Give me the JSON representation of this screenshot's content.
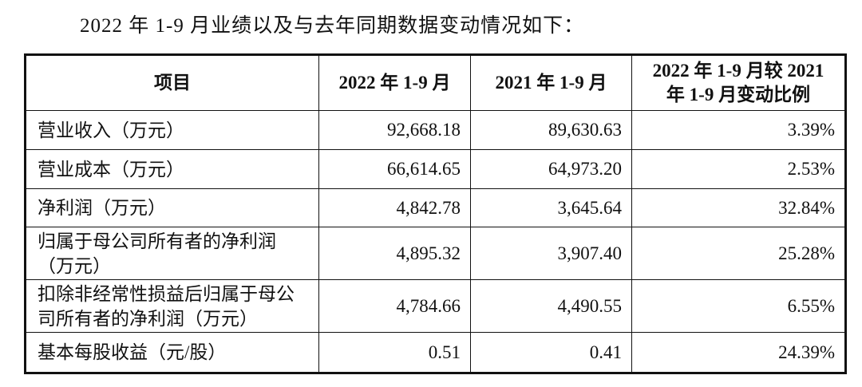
{
  "title": "2022 年 1-9 月业绩以及与去年同期数据变动情况如下：",
  "table": {
    "header": [
      "项目",
      "2022 年 1-9 月",
      "2021 年 1-9 月",
      "2022 年 1-9 月较 2021 年 1-9 月变动比例"
    ],
    "rows": [
      [
        "营业收入（万元）",
        "92,668.18",
        "89,630.63",
        "3.39%"
      ],
      [
        "营业成本（万元）",
        "66,614.65",
        "64,973.20",
        "2.53%"
      ],
      [
        "净利润（万元）",
        "4,842.78",
        "3,645.64",
        "32.84%"
      ],
      [
        "归属于母公司所有者的净利润（万元）",
        "4,895.32",
        "3,907.40",
        "25.28%"
      ],
      [
        "扣除非经常性损益后归属于母公司所有者的净利润（万元）",
        "4,784.66",
        "4,490.55",
        "6.55%"
      ],
      [
        "基本每股收益（元/股）",
        "0.51",
        "0.41",
        "24.39%"
      ]
    ]
  }
}
